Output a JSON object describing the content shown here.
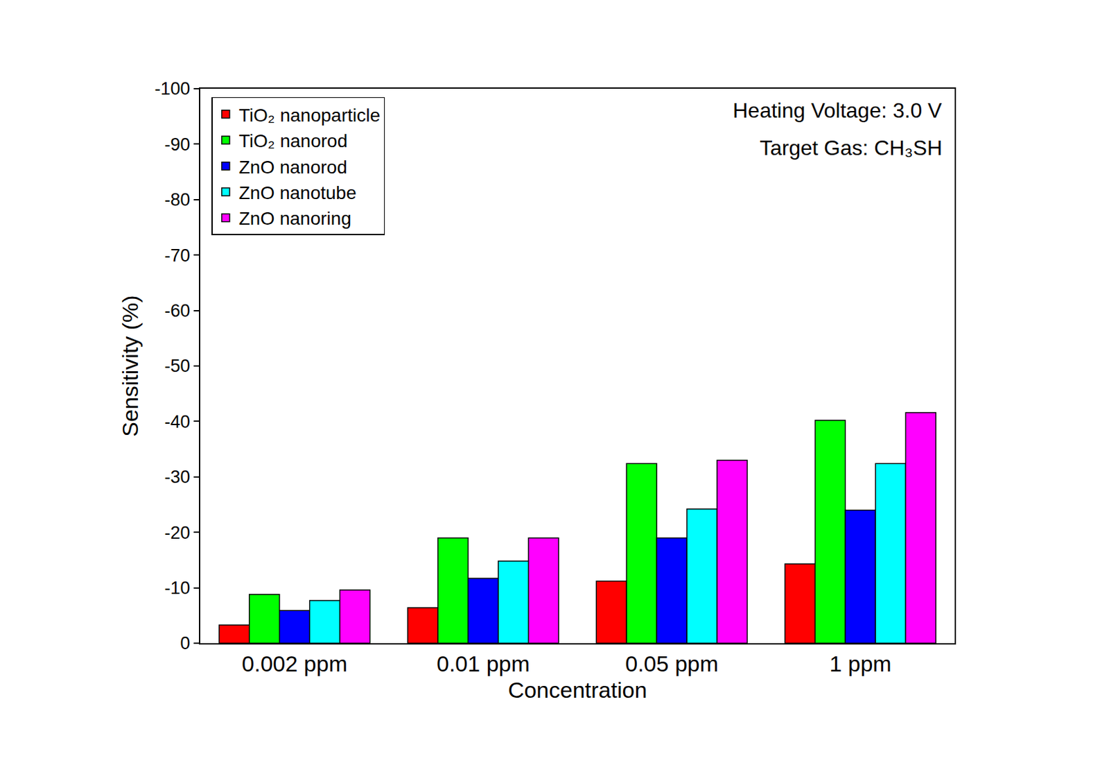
{
  "chart_data": {
    "type": "bar",
    "xlabel": "Concentration",
    "ylabel": "Sensitivity (%)",
    "categories": [
      "0.002 ppm",
      "0.01 ppm",
      "0.05 ppm",
      "1 ppm"
    ],
    "series": [
      {
        "name": "TiO₂ nanoparticle",
        "color": "#ff0000",
        "values": [
          -3.3,
          -6.4,
          -11.2,
          -14.3
        ]
      },
      {
        "name": "TiO₂ nanorod",
        "color": "#00ff00",
        "values": [
          -8.8,
          -19.0,
          -32.4,
          -40.2
        ]
      },
      {
        "name": "ZnO nanorod",
        "color": "#0000ff",
        "values": [
          -5.9,
          -11.7,
          -19.0,
          -24.0
        ]
      },
      {
        "name": "ZnO nanotube",
        "color": "#00ffff",
        "values": [
          -7.7,
          -14.8,
          -24.2,
          -32.4
        ]
      },
      {
        "name": "ZnO nanoring",
        "color": "#ff00ff",
        "values": [
          -9.6,
          -19.0,
          -33.0,
          -41.6
        ]
      }
    ],
    "ylim": [
      0,
      -100
    ],
    "yticks": [
      0,
      -10,
      -20,
      -30,
      -40,
      -50,
      -60,
      -70,
      -80,
      -90,
      -100
    ],
    "legend": "top-left",
    "grid": false,
    "annotations": [
      "Heating Voltage: 3.0 V",
      "Target Gas: CH₃SH"
    ]
  }
}
